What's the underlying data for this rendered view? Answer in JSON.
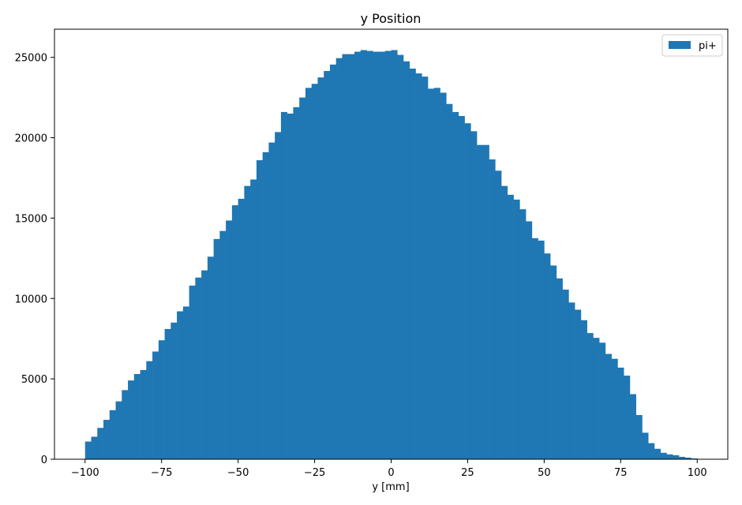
{
  "chart_data": {
    "type": "bar",
    "title": "y Position",
    "xlabel": "y [mm]",
    "ylabel": "",
    "xlim": [
      -110,
      110
    ],
    "ylim": [
      0,
      26750
    ],
    "xticks": [
      -100,
      -75,
      -50,
      -25,
      0,
      25,
      50,
      75,
      100
    ],
    "xtick_labels": [
      "−100",
      "−75",
      "−50",
      "−25",
      "0",
      "25",
      "50",
      "75",
      "100"
    ],
    "yticks": [
      0,
      5000,
      10000,
      15000,
      20000,
      25000
    ],
    "ytick_labels": [
      "0",
      "5000",
      "10000",
      "15000",
      "20000",
      "25000"
    ],
    "grid": false,
    "legend_position": "top-right",
    "bin_edges_start": -100,
    "bin_width": 2,
    "series": [
      {
        "name": "pi+",
        "color": "#1f77b4",
        "values": [
          1100,
          1400,
          1950,
          2450,
          3050,
          3600,
          4300,
          4900,
          5300,
          5550,
          6100,
          6700,
          7400,
          8100,
          8500,
          9200,
          9500,
          10800,
          11300,
          11750,
          12600,
          13700,
          14200,
          14850,
          15800,
          16200,
          17000,
          17400,
          18600,
          19100,
          19700,
          20350,
          21600,
          21500,
          21900,
          22500,
          23100,
          23350,
          23750,
          24150,
          24550,
          24950,
          25200,
          25200,
          25350,
          25450,
          25400,
          25350,
          25350,
          25400,
          25450,
          25150,
          24750,
          24300,
          24000,
          23800,
          23050,
          23100,
          22800,
          22100,
          21600,
          21350,
          20900,
          20400,
          19550,
          19550,
          18650,
          17950,
          17000,
          16450,
          16150,
          15550,
          14800,
          13750,
          13600,
          12800,
          12050,
          11250,
          10550,
          9750,
          9300,
          8650,
          7850,
          7550,
          7250,
          6550,
          6250,
          5700,
          5200,
          4050,
          2750,
          1650,
          1000,
          650,
          400,
          300,
          250,
          150,
          100,
          50
        ]
      }
    ]
  }
}
